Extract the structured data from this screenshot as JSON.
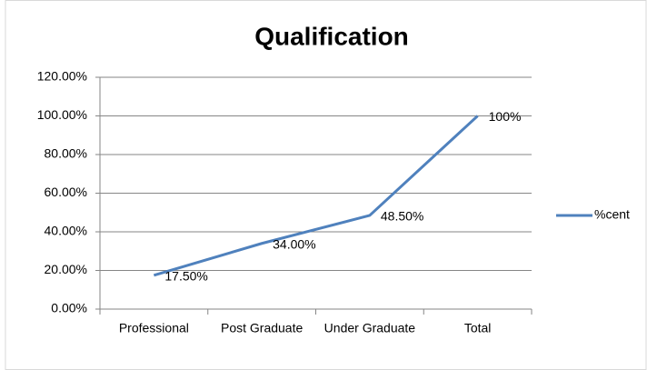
{
  "chart_data": {
    "type": "line",
    "title": "Qualification",
    "categories": [
      "Professional",
      "Post Graduate",
      "Under Graduate",
      "Total"
    ],
    "series": [
      {
        "name": "%cent",
        "color": "#4f81bd",
        "values": [
          17.5,
          34,
          48.5,
          100
        ],
        "value_labels": [
          "17.50%",
          "34.00%",
          "48.50%",
          "100%"
        ]
      }
    ],
    "ylim": [
      0,
      120
    ],
    "yticks": [
      {
        "value": 0,
        "label": "0.00%"
      },
      {
        "value": 20,
        "label": "20.00%"
      },
      {
        "value": 40,
        "label": "40.00%"
      },
      {
        "value": 60,
        "label": "60.00%"
      },
      {
        "value": 80,
        "label": "80.00%"
      },
      {
        "value": 100,
        "label": "100.00%"
      },
      {
        "value": 120,
        "label": "120.00%"
      }
    ],
    "grid": true,
    "legend": "right"
  }
}
